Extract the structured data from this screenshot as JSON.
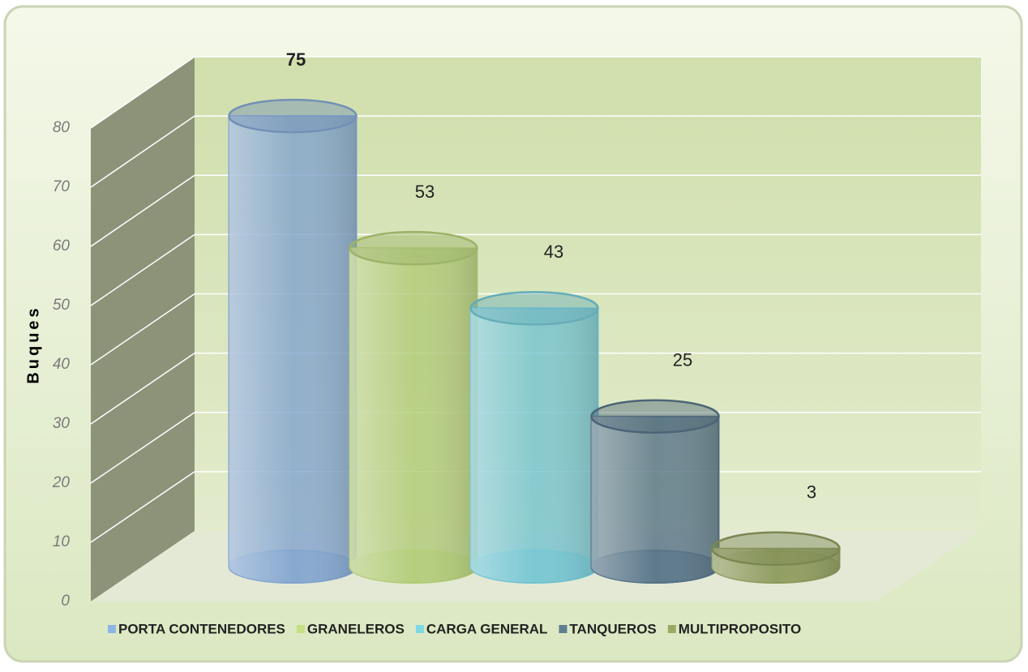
{
  "chart_data": {
    "type": "bar",
    "ylabel": "Buques",
    "categories": [
      "PORTA CONTENEDORES",
      "GRANELEROS",
      "CARGA GENERAL",
      "TANQUEROS",
      "MULTIPROPOSITO"
    ],
    "values": [
      75,
      53,
      43,
      25,
      3
    ],
    "colors": [
      "#8fb4e3",
      "#c3e082",
      "#7fd8e6",
      "#5e7e93",
      "#9aa964"
    ],
    "ylim": [
      0,
      80
    ],
    "yticks": [
      0,
      10,
      20,
      30,
      40,
      50,
      60,
      70,
      80
    ],
    "grid": true
  }
}
